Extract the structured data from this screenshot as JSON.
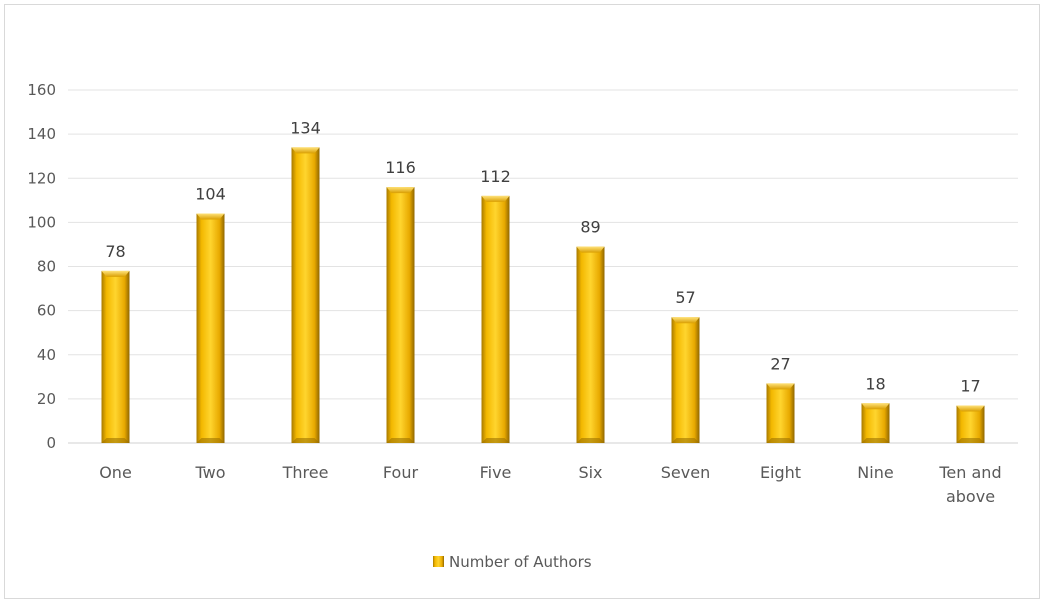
{
  "chart_data": {
    "type": "bar",
    "title": "",
    "xlabel": "",
    "ylabel": "",
    "categories": [
      "One",
      "Two",
      "Three",
      "Four",
      "Five",
      "Six",
      "Seven",
      "Eight",
      "Nine",
      "Ten and above"
    ],
    "series": [
      {
        "name": "Number of Authors",
        "values": [
          78,
          104,
          134,
          116,
          112,
          89,
          57,
          27,
          18,
          17
        ]
      }
    ],
    "ylim": [
      0,
      160
    ],
    "yticks": [
      0,
      20,
      40,
      60,
      80,
      100,
      120,
      140,
      160
    ],
    "grid": true,
    "data_labels": true,
    "legend": "bottom-center",
    "colors": {
      "bar_light": "#ffd23a",
      "bar_mid": "#e6ad00",
      "bar_dark": "#9c7200",
      "gridline": "#e3e3e3",
      "axis_text": "#595959"
    }
  }
}
